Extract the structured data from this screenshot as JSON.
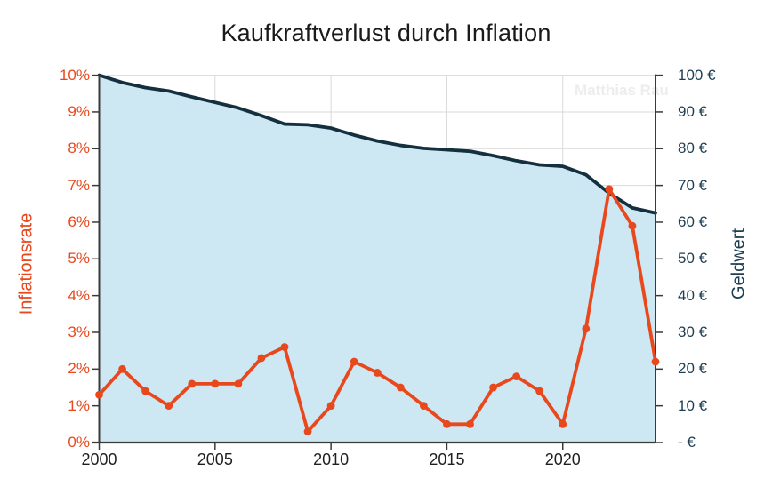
{
  "title": "Kaufkraftverlust durch Inflation",
  "watermark": "Matthias Rau",
  "colors": {
    "orange": "#e8481c",
    "navy_line": "#14303f",
    "navy_text": "#1d3e52",
    "area_fill": "#cde7f3",
    "grid": "#d9d9d9",
    "spine": "#3a3a3a",
    "title_text": "#1a1a1a",
    "x_label": "#1f1f1f",
    "watermark_gray": "#ededed"
  },
  "chart_data": {
    "type": "line",
    "title": "Kaufkraftverlust durch Inflation",
    "x": [
      2000,
      2001,
      2002,
      2003,
      2004,
      2005,
      2006,
      2007,
      2008,
      2009,
      2010,
      2011,
      2012,
      2013,
      2014,
      2015,
      2016,
      2017,
      2018,
      2019,
      2020,
      2021,
      2022,
      2023,
      2024
    ],
    "series": [
      {
        "name": "Inflationsrate",
        "axis": "left",
        "unit": "%",
        "marker": "circle",
        "values": [
          1.3,
          2.0,
          1.4,
          1.0,
          1.6,
          1.6,
          1.6,
          2.3,
          2.6,
          0.3,
          1.0,
          2.2,
          1.9,
          1.5,
          1.0,
          0.5,
          0.5,
          1.5,
          1.8,
          1.4,
          0.5,
          3.1,
          6.9,
          5.9,
          2.2
        ]
      },
      {
        "name": "Geldwert",
        "axis": "right",
        "unit": "€",
        "marker": "none",
        "area": true,
        "values": [
          100,
          98.0,
          96.6,
          95.7,
          94.1,
          92.6,
          91.1,
          89.0,
          86.7,
          86.5,
          85.6,
          83.7,
          82.1,
          80.9,
          80.1,
          79.7,
          79.3,
          78.1,
          76.7,
          75.6,
          75.2,
          72.9,
          67.9,
          63.9,
          62.5
        ]
      }
    ],
    "y_left": {
      "title": "Inflationsrate",
      "min": 0,
      "max": 10,
      "tick_step": 1,
      "tick_labels": [
        "0%",
        "1%",
        "2%",
        "3%",
        "4%",
        "5%",
        "6%",
        "7%",
        "8%",
        "9%",
        "10%"
      ]
    },
    "y_right": {
      "title": "Geldwert",
      "min": 0,
      "max": 100,
      "tick_step": 10,
      "tick_labels": [
        "- €",
        "10 €",
        "20 €",
        "30 €",
        "40 €",
        "50 €",
        "60 €",
        "70 €",
        "80 €",
        "90 €",
        "100 €"
      ]
    },
    "x_ticks": [
      {
        "year": 2000,
        "label": "2000"
      },
      {
        "year": 2005,
        "label": "2005"
      },
      {
        "year": 2010,
        "label": "2010"
      },
      {
        "year": 2015,
        "label": "2015"
      },
      {
        "year": 2020,
        "label": "2020"
      }
    ],
    "grid": true,
    "legend": "none"
  }
}
